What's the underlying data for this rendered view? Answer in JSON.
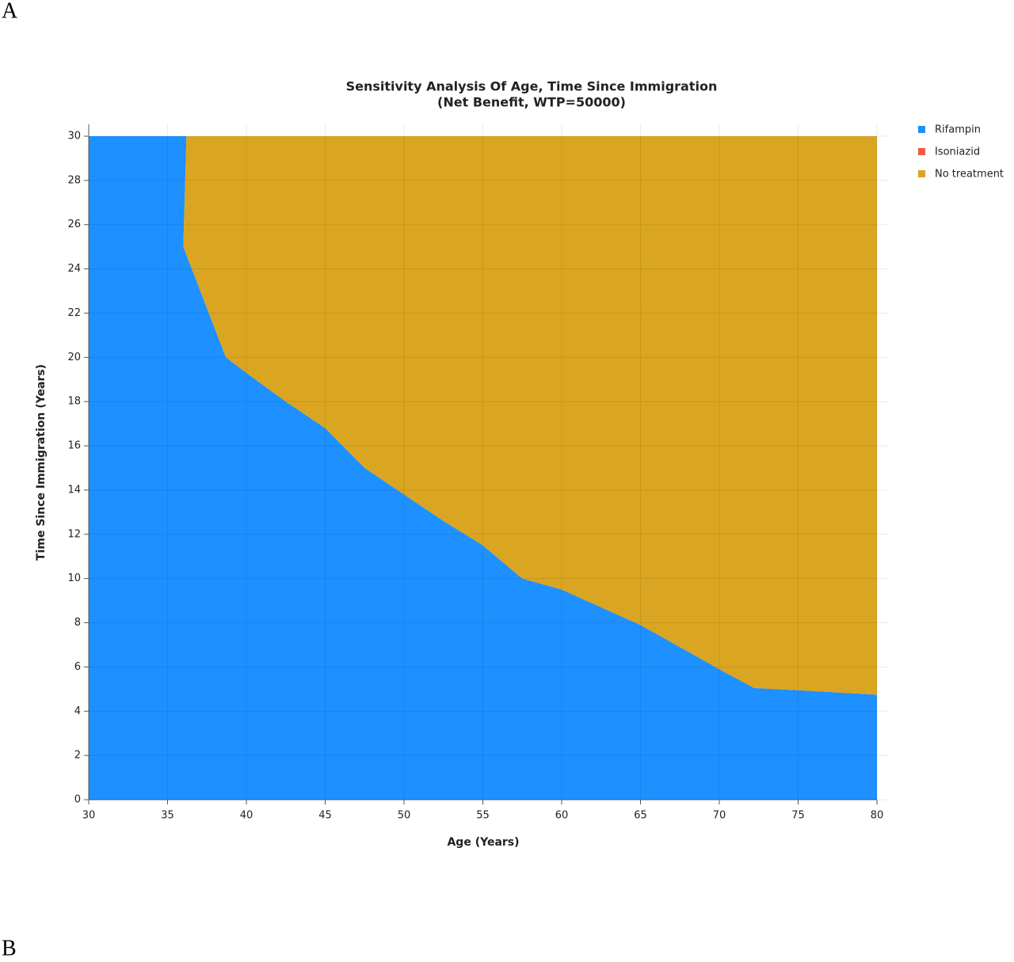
{
  "panel_labels": [
    "A",
    "B"
  ],
  "chart_data": {
    "type": "stacked_area",
    "title": "Sensitivity Analysis Of Age, Time Since Immigration",
    "subtitle": "(Net Benefit, WTP=50000)",
    "x_label": "Age (Years)",
    "y_label": "Time Since Immigration (Years)",
    "x": [
      30,
      36.2,
      36,
      38.7,
      40,
      42.5,
      45,
      47.5,
      50,
      52.5,
      55,
      57.5,
      60,
      62.5,
      65,
      67.5,
      70,
      72.2,
      75,
      80
    ],
    "series": [
      {
        "name": "Rifampin",
        "color": "#1e90ff",
        "values": [
          30,
          30,
          25,
          20,
          19.3,
          18,
          16.8,
          15,
          13.8,
          12.6,
          11.5,
          10,
          9.5,
          8.7,
          7.9,
          6.9,
          5.9,
          5.05,
          4.95,
          4.75
        ]
      },
      {
        "name": "Isoniazid",
        "color": "#f05a46",
        "values": [
          0,
          0,
          0,
          0,
          0,
          0,
          0,
          0,
          0,
          0,
          0,
          0,
          0,
          0,
          0,
          0,
          0,
          0,
          0,
          0
        ]
      },
      {
        "name": "No treatment",
        "color": "#daa520",
        "values": [
          0,
          0,
          5,
          10,
          10.7,
          12,
          13.2,
          15,
          16.2,
          17.4,
          18.5,
          20,
          20.5,
          21.3,
          22.1,
          23.1,
          24.1,
          24.95,
          25.05,
          25.25
        ]
      }
    ],
    "xlim": [
      30,
      80
    ],
    "xticks": [
      30,
      35,
      40,
      45,
      50,
      55,
      60,
      65,
      70,
      75,
      80
    ],
    "ylim": [
      0,
      30
    ],
    "yticks": [
      0,
      2,
      4,
      6,
      8,
      10,
      12,
      14,
      16,
      18,
      20,
      22,
      24,
      26,
      28,
      30
    ],
    "grid": true,
    "legend": "top-right"
  }
}
